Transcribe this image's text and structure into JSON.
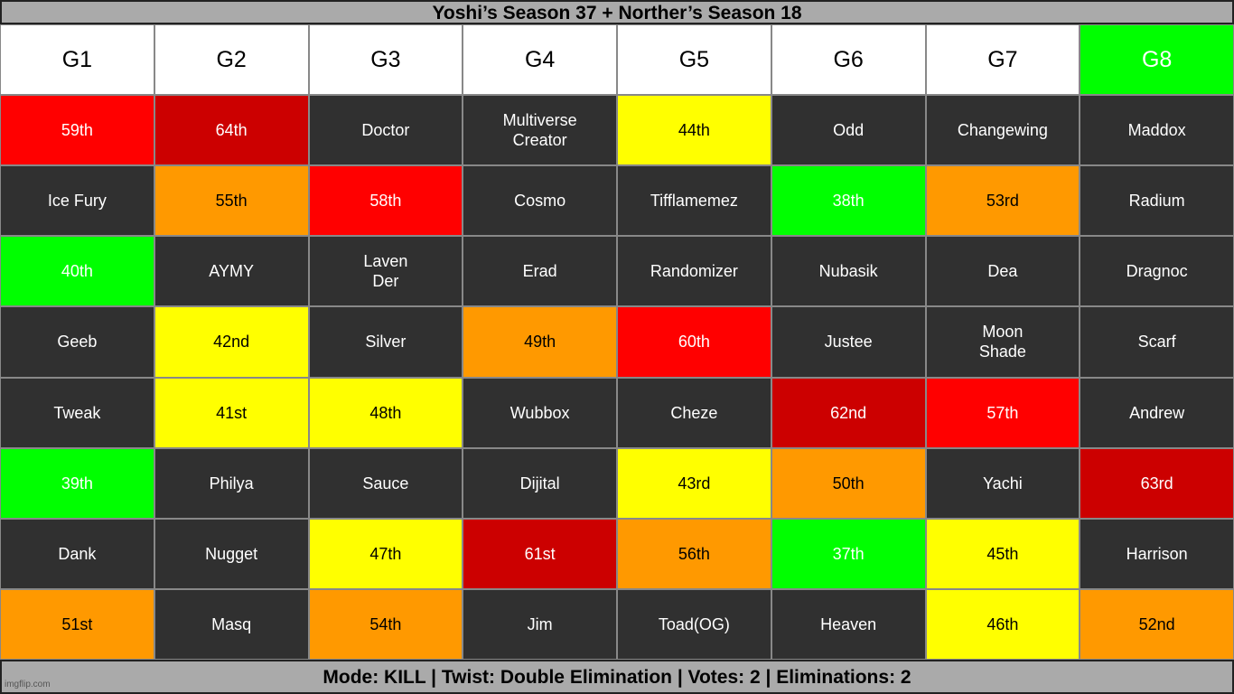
{
  "header": {
    "title": "Yoshi’s Season 37 + Norther’s Season 18"
  },
  "table": {
    "columns": [
      {
        "text": "G1",
        "color": "#ffffff"
      },
      {
        "text": "G2",
        "color": "#ffffff"
      },
      {
        "text": "G3",
        "color": "#ffffff"
      },
      {
        "text": "G4",
        "color": "#ffffff"
      },
      {
        "text": "G5",
        "color": "#ffffff"
      },
      {
        "text": "G6",
        "color": "#ffffff"
      },
      {
        "text": "G7",
        "color": "#ffffff"
      },
      {
        "text": "G8",
        "color": "#00ff00"
      }
    ],
    "rows": [
      [
        {
          "text": "59th",
          "color": "#ff0000"
        },
        {
          "text": "64th",
          "color": "#cc0000"
        },
        {
          "text": "Doctor",
          "color": "#303030"
        },
        {
          "text": "Multiverse\nCreator",
          "color": "#303030"
        },
        {
          "text": "44th",
          "color": "#ffff00"
        },
        {
          "text": "Odd",
          "color": "#303030"
        },
        {
          "text": "Changewing",
          "color": "#303030"
        },
        {
          "text": "Maddox",
          "color": "#303030"
        }
      ],
      [
        {
          "text": "Ice Fury",
          "color": "#303030"
        },
        {
          "text": "55th",
          "color": "#ff9900"
        },
        {
          "text": "58th",
          "color": "#ff0000"
        },
        {
          "text": "Cosmo",
          "color": "#303030"
        },
        {
          "text": "Tifflamemez",
          "color": "#303030"
        },
        {
          "text": "38th",
          "color": "#00ff00"
        },
        {
          "text": "53rd",
          "color": "#ff9900"
        },
        {
          "text": "Radium",
          "color": "#303030"
        }
      ],
      [
        {
          "text": "40th",
          "color": "#00ff00"
        },
        {
          "text": "AYMY",
          "color": "#303030"
        },
        {
          "text": "Laven\nDer",
          "color": "#303030"
        },
        {
          "text": "Erad",
          "color": "#303030"
        },
        {
          "text": "Randomizer",
          "color": "#303030"
        },
        {
          "text": "Nubasik",
          "color": "#303030"
        },
        {
          "text": "Dea",
          "color": "#303030"
        },
        {
          "text": "Dragnoc",
          "color": "#303030"
        }
      ],
      [
        {
          "text": "Geeb",
          "color": "#303030"
        },
        {
          "text": "42nd",
          "color": "#ffff00"
        },
        {
          "text": "Silver",
          "color": "#303030"
        },
        {
          "text": "49th",
          "color": "#ff9900"
        },
        {
          "text": "60th",
          "color": "#ff0000"
        },
        {
          "text": "Justee",
          "color": "#303030"
        },
        {
          "text": "Moon\nShade",
          "color": "#303030"
        },
        {
          "text": "Scarf",
          "color": "#303030"
        }
      ],
      [
        {
          "text": "Tweak",
          "color": "#303030"
        },
        {
          "text": "41st",
          "color": "#ffff00"
        },
        {
          "text": "48th",
          "color": "#ffff00"
        },
        {
          "text": "Wubbox",
          "color": "#303030"
        },
        {
          "text": "Cheze",
          "color": "#303030"
        },
        {
          "text": "62nd",
          "color": "#cc0000"
        },
        {
          "text": "57th",
          "color": "#ff0000"
        },
        {
          "text": "Andrew",
          "color": "#303030"
        }
      ],
      [
        {
          "text": "39th",
          "color": "#00ff00"
        },
        {
          "text": "Philya",
          "color": "#303030"
        },
        {
          "text": "Sauce",
          "color": "#303030"
        },
        {
          "text": "Dijital",
          "color": "#303030"
        },
        {
          "text": "43rd",
          "color": "#ffff00"
        },
        {
          "text": "50th",
          "color": "#ff9900"
        },
        {
          "text": "Yachi",
          "color": "#303030"
        },
        {
          "text": "63rd",
          "color": "#cc0000"
        }
      ],
      [
        {
          "text": "Dank",
          "color": "#303030"
        },
        {
          "text": "Nugget",
          "color": "#303030"
        },
        {
          "text": "47th",
          "color": "#ffff00"
        },
        {
          "text": "61st",
          "color": "#cc0000"
        },
        {
          "text": "56th",
          "color": "#ff9900"
        },
        {
          "text": "37th",
          "color": "#00ff00"
        },
        {
          "text": "45th",
          "color": "#ffff00"
        },
        {
          "text": "Harrison",
          "color": "#303030"
        }
      ],
      [
        {
          "text": "51st",
          "color": "#ff9900"
        },
        {
          "text": "Masq",
          "color": "#303030"
        },
        {
          "text": "54th",
          "color": "#ff9900"
        },
        {
          "text": "Jim",
          "color": "#303030"
        },
        {
          "text": "Toad(OG)",
          "color": "#303030"
        },
        {
          "text": "Heaven",
          "color": "#303030"
        },
        {
          "text": "46th",
          "color": "#ffff00"
        },
        {
          "text": "52nd",
          "color": "#ff9900"
        }
      ]
    ]
  },
  "footer": {
    "text": "Mode: KILL | Twist: Double Elimination | Votes: 2 | Eliminations: 2",
    "watermark": "imgflip.com"
  }
}
